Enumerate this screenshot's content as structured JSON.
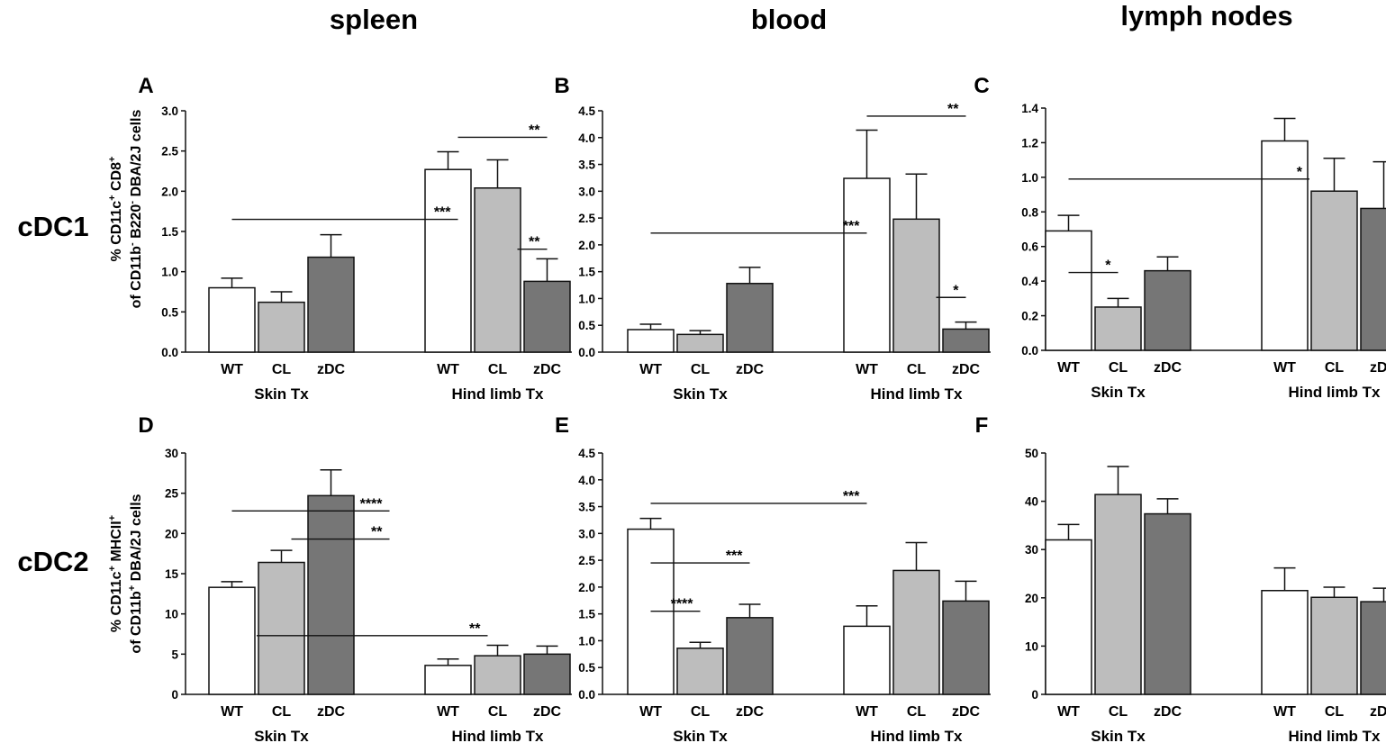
{
  "column_titles": [
    "spleen",
    "blood",
    "lymph nodes"
  ],
  "row_titles": [
    "cDC1",
    "cDC2"
  ],
  "y_labels": {
    "row1": {
      "line1": [
        "% CD11c",
        "+",
        " CD8",
        "+"
      ],
      "line2": [
        "of CD11b",
        "-",
        " B220",
        "-",
        " DBA/2J cells"
      ]
    },
    "row2": {
      "line1": [
        "% CD11c",
        "+",
        " MHCII",
        "+"
      ],
      "line2": [
        "of CD11b",
        "+",
        " DBA/2J cells"
      ]
    }
  },
  "colors": {
    "WT": "#ffffff",
    "CL": "#bdbdbd",
    "zDC": "#767676",
    "zDC_dark": "#6e6e6e",
    "axis": "#111111"
  },
  "chart_data": [
    {
      "panel": "A",
      "type": "bar",
      "groups": [
        "Skin Tx",
        "Hind limb Tx"
      ],
      "categories": [
        "WT",
        "CL",
        "zDC",
        "WT",
        "CL",
        "zDC"
      ],
      "values": [
        0.8,
        0.62,
        1.18,
        2.27,
        2.04,
        0.88
      ],
      "errors": [
        0.12,
        0.13,
        0.28,
        0.22,
        0.35,
        0.28
      ],
      "ylim": [
        0,
        3.0
      ],
      "yticks": [
        "0.0",
        "0.5",
        "1.0",
        "1.5",
        "2.0",
        "2.5",
        "3.0"
      ],
      "significance": [
        {
          "label": "***",
          "x1": 0.0,
          "x2": 3.2,
          "y": 1.65
        },
        {
          "label": "**",
          "x1": 3.2,
          "x2": 5.0,
          "y": 2.67
        },
        {
          "label": "**",
          "x1": 4.4,
          "x2": 5.0,
          "y": 1.28
        }
      ]
    },
    {
      "panel": "B",
      "type": "bar",
      "groups": [
        "Skin Tx",
        "Hind limb Tx"
      ],
      "categories": [
        "WT",
        "CL",
        "zDC",
        "WT",
        "CL",
        "zDC"
      ],
      "values": [
        0.42,
        0.33,
        1.28,
        3.24,
        2.48,
        0.43
      ],
      "errors": [
        0.1,
        0.07,
        0.3,
        0.9,
        0.84,
        0.13
      ],
      "ylim": [
        0,
        4.5
      ],
      "yticks": [
        "0.0",
        "0.5",
        "1.0",
        "1.5",
        "2.0",
        "2.5",
        "3.0",
        "3.5",
        "4.0",
        "4.5"
      ],
      "significance": [
        {
          "label": "***",
          "x1": 0.0,
          "x2": 3.0,
          "y": 2.22
        },
        {
          "label": "**",
          "x1": 3.0,
          "x2": 5.0,
          "y": 4.4
        },
        {
          "label": "*",
          "x1": 4.4,
          "x2": 5.0,
          "y": 1.02
        }
      ]
    },
    {
      "panel": "C",
      "type": "bar",
      "groups": [
        "Skin Tx",
        "Hind limb Tx"
      ],
      "categories": [
        "WT",
        "CL",
        "zDC",
        "WT",
        "CL",
        "zDC"
      ],
      "values": [
        0.69,
        0.25,
        0.46,
        1.21,
        0.92,
        0.82
      ],
      "errors": [
        0.09,
        0.05,
        0.08,
        0.13,
        0.19,
        0.27
      ],
      "ylim": [
        0,
        1.4
      ],
      "yticks": [
        "0.0",
        "0.2",
        "0.4",
        "0.6",
        "0.8",
        "1.0",
        "1.2",
        "1.4"
      ],
      "significance": [
        {
          "label": "*",
          "x1": 0.0,
          "x2": 3.5,
          "y": 0.99
        },
        {
          "label": "*",
          "x1": 0.0,
          "x2": 1.0,
          "y": 0.45
        }
      ]
    },
    {
      "panel": "D",
      "type": "bar",
      "groups": [
        "Skin Tx",
        "Hind limb Tx"
      ],
      "categories": [
        "WT",
        "CL",
        "zDC",
        "WT",
        "CL",
        "zDC"
      ],
      "values": [
        13.3,
        16.4,
        24.7,
        3.6,
        4.8,
        5.0
      ],
      "errors": [
        0.7,
        1.5,
        3.2,
        0.8,
        1.3,
        1.0
      ],
      "ylim": [
        0,
        30
      ],
      "yticks": [
        "0",
        "5",
        "10",
        "15",
        "20",
        "25",
        "30"
      ],
      "significance": [
        {
          "label": "****",
          "x1": 0.0,
          "x2": 2.5,
          "y": 22.8
        },
        {
          "label": "**",
          "x1": 1.2,
          "x2": 2.5,
          "y": 19.3
        },
        {
          "label": "**",
          "x1": 0.5,
          "x2": 3.8,
          "y": 7.3
        }
      ]
    },
    {
      "panel": "E",
      "type": "bar",
      "groups": [
        "Skin Tx",
        "Hind limb Tx"
      ],
      "categories": [
        "WT",
        "CL",
        "zDC",
        "WT",
        "CL",
        "zDC"
      ],
      "values": [
        3.08,
        0.86,
        1.43,
        1.27,
        2.31,
        1.74
      ],
      "errors": [
        0.2,
        0.11,
        0.25,
        0.38,
        0.52,
        0.37
      ],
      "ylim": [
        0,
        4.5
      ],
      "yticks": [
        "0.0",
        "0.5",
        "1.0",
        "1.5",
        "2.0",
        "2.5",
        "3.0",
        "3.5",
        "4.0",
        "4.5"
      ],
      "significance": [
        {
          "label": "***",
          "x1": 0.0,
          "x2": 3.0,
          "y": 3.56
        },
        {
          "label": "***",
          "x1": 0.0,
          "x2": 2.0,
          "y": 2.45
        },
        {
          "label": "****",
          "x1": 0.0,
          "x2": 1.0,
          "y": 1.55
        }
      ]
    },
    {
      "panel": "F",
      "type": "bar",
      "groups": [
        "Skin Tx",
        "Hind limb Tx"
      ],
      "categories": [
        "WT",
        "CL",
        "zDC",
        "WT",
        "CL",
        "zDC"
      ],
      "values": [
        32.0,
        41.4,
        37.4,
        21.5,
        20.1,
        19.2
      ],
      "errors": [
        3.2,
        5.8,
        3.1,
        4.7,
        2.1,
        2.8
      ],
      "ylim": [
        0,
        50
      ],
      "yticks": [
        "0",
        "10",
        "20",
        "30",
        "40",
        "50"
      ],
      "significance": []
    }
  ]
}
